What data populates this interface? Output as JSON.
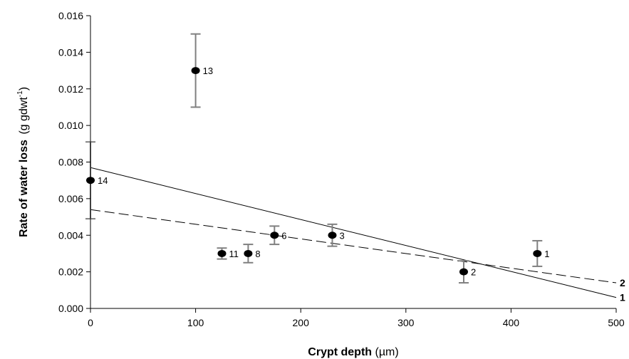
{
  "chart_data": {
    "type": "scatter",
    "title": "",
    "xlabel": {
      "bold": "Crypt depth",
      "rest": " (µm)"
    },
    "ylabel": {
      "main": "Rate of water loss",
      "unit": "(g gdwt",
      "sup": "-1",
      "close": ")"
    },
    "xlim": [
      0,
      500
    ],
    "ylim": [
      0,
      0.016
    ],
    "x_ticks": [
      "0",
      "100",
      "200",
      "300",
      "400",
      "500"
    ],
    "y_ticks": [
      "0.000",
      "0.002",
      "0.004",
      "0.006",
      "0.008",
      "0.010",
      "0.012",
      "0.014",
      "0.016"
    ],
    "grid": false,
    "points": [
      {
        "label": "1",
        "x": 425,
        "y": 0.003,
        "err_low": 0.0023,
        "err_high": 0.0037
      },
      {
        "label": "2",
        "x": 355,
        "y": 0.002,
        "err_low": 0.0014,
        "err_high": 0.0026
      },
      {
        "label": "3",
        "x": 230,
        "y": 0.004,
        "err_low": 0.0034,
        "err_high": 0.0046
      },
      {
        "label": "6",
        "x": 175,
        "y": 0.004,
        "err_low": 0.0035,
        "err_high": 0.0045
      },
      {
        "label": "8",
        "x": 150,
        "y": 0.003,
        "err_low": 0.0025,
        "err_high": 0.0035
      },
      {
        "label": "11",
        "x": 125,
        "y": 0.003,
        "err_low": 0.0027,
        "err_high": 0.0033
      },
      {
        "label": "13",
        "x": 100,
        "y": 0.013,
        "err_low": 0.011,
        "err_high": 0.015
      },
      {
        "label": "14",
        "x": 0,
        "y": 0.007,
        "err_low": 0.0049,
        "err_high": 0.0091
      }
    ],
    "regression_lines": [
      {
        "label": "1",
        "style": "solid",
        "x": [
          0,
          500
        ],
        "y": [
          0.0077,
          0.0006
        ]
      },
      {
        "label": "2",
        "style": "dashed",
        "x": [
          0,
          500
        ],
        "y": [
          0.0054,
          0.0014
        ]
      }
    ],
    "colors": {
      "points": "#000000",
      "error_bars": "#808080",
      "lines": "#000000"
    }
  }
}
